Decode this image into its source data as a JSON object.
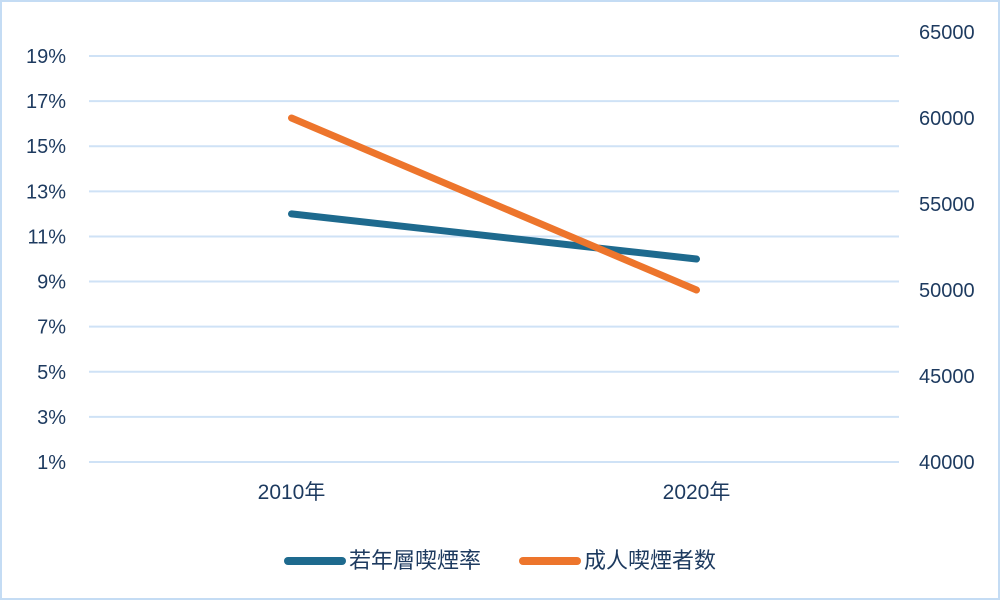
{
  "chart_data": {
    "type": "line",
    "title": "",
    "categories": [
      "2010年",
      "2020年"
    ],
    "series": [
      {
        "name": "若年層喫煙率",
        "axis": "left",
        "color": "#1e6a8e",
        "values": [
          12,
          10
        ],
        "unit": "%"
      },
      {
        "name": "成人喫煙者数",
        "axis": "right",
        "color": "#ed752c",
        "values": [
          60000,
          50000
        ],
        "unit": ""
      }
    ],
    "left_axis": {
      "tick_labels": [
        "19%",
        "17%",
        "15%",
        "13%",
        "11%",
        "9%",
        "7%",
        "5%",
        "3%",
        "1%"
      ],
      "tick_values": [
        19,
        17,
        15,
        13,
        11,
        9,
        7,
        5,
        3,
        1
      ],
      "min": 1,
      "max": 19
    },
    "right_axis": {
      "tick_labels": [
        "65000",
        "60000",
        "55000",
        "50000",
        "45000",
        "40000"
      ],
      "tick_values": [
        65000,
        60000,
        55000,
        50000,
        45000,
        40000
      ],
      "min": 40000,
      "max": 65000
    },
    "grid": true,
    "legend_position": "bottom"
  },
  "colors": {
    "frame_border": "#c4dcf4",
    "gridline": "#cfe2f6",
    "axis_text": "#1d3a5f",
    "background": "#ffffff",
    "series_youth": "#1e6a8e",
    "series_adult": "#ed752c"
  }
}
